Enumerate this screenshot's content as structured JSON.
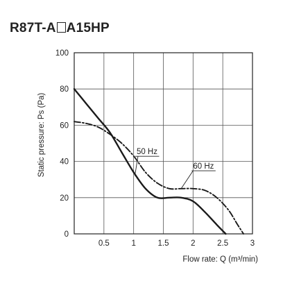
{
  "title": {
    "prefix": "R87T-A",
    "suffix": "A15HP"
  },
  "chart_data": {
    "type": "line",
    "title": "R87T-A□A15HP",
    "xlabel": "Flow rate: Q (m³/min)",
    "ylabel": "Static pressure: Ps (Pa)",
    "xlim": [
      0,
      3
    ],
    "ylim": [
      0,
      100
    ],
    "x_ticks": [
      "0.5",
      "1",
      "1.5",
      "2",
      "2.5",
      "3"
    ],
    "y_ticks": [
      "0",
      "20",
      "40",
      "60",
      "80",
      "100"
    ],
    "grid": true,
    "series": [
      {
        "name": "50 Hz",
        "style": "solid",
        "x": [
          0,
          0.2,
          0.4,
          0.6,
          0.8,
          1.0,
          1.2,
          1.4,
          1.6,
          1.8,
          2.0,
          2.2,
          2.4,
          2.55
        ],
        "y": [
          80,
          72,
          64,
          56,
          45,
          34,
          25,
          20,
          20,
          20,
          18,
          12,
          5,
          0
        ]
      },
      {
        "name": "60 Hz",
        "style": "dashdot",
        "x": [
          0,
          0.2,
          0.4,
          0.6,
          0.8,
          1.0,
          1.2,
          1.4,
          1.6,
          1.8,
          2.0,
          2.2,
          2.4,
          2.6,
          2.75,
          2.85
        ],
        "y": [
          62,
          61,
          59,
          55,
          50,
          43,
          34,
          28,
          25,
          25,
          25,
          24,
          20,
          13,
          5,
          0
        ]
      }
    ],
    "annotations": [
      {
        "text": "50 Hz",
        "x": 1.05,
        "y": 44,
        "target_x": 1.02,
        "target_y": 32
      },
      {
        "text": "60 Hz",
        "x": 2.0,
        "y": 36,
        "target_x": 1.8,
        "target_y": 25
      }
    ]
  }
}
